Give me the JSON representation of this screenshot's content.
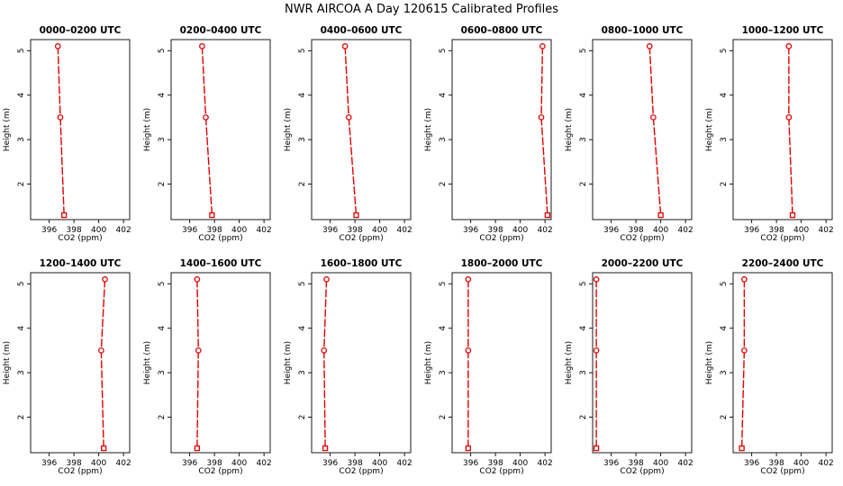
{
  "figure_title": "NWR AIRCOA A  Day 120615  Calibrated Profiles",
  "chart_data": [
    {
      "type": "line",
      "title": "0000–0200 UTC",
      "xlabel": "CO2 (ppm)",
      "ylabel": "Height (m)",
      "xlim": [
        394.5,
        402.5
      ],
      "ylim": [
        1.2,
        5.25
      ],
      "xticks": [
        396,
        398,
        400,
        402
      ],
      "yticks": [
        2,
        3,
        4,
        5
      ],
      "points": [
        {
          "x": 396.7,
          "y": 5.1
        },
        {
          "x": 396.9,
          "y": 3.5
        },
        {
          "x": 397.2,
          "y": 1.3
        }
      ]
    },
    {
      "type": "line",
      "title": "0200–0400 UTC",
      "xlabel": "CO2 (ppm)",
      "ylabel": "Height (m)",
      "xlim": [
        394.5,
        402.5
      ],
      "ylim": [
        1.2,
        5.25
      ],
      "xticks": [
        396,
        398,
        400,
        402
      ],
      "yticks": [
        2,
        3,
        4,
        5
      ],
      "points": [
        {
          "x": 397.0,
          "y": 5.1
        },
        {
          "x": 397.3,
          "y": 3.5
        },
        {
          "x": 397.8,
          "y": 1.3
        }
      ]
    },
    {
      "type": "line",
      "title": "0400–0600 UTC",
      "xlabel": "CO2 (ppm)",
      "ylabel": "Height (m)",
      "xlim": [
        394.5,
        402.5
      ],
      "ylim": [
        1.2,
        5.25
      ],
      "xticks": [
        396,
        398,
        400,
        402
      ],
      "yticks": [
        2,
        3,
        4,
        5
      ],
      "points": [
        {
          "x": 397.2,
          "y": 5.1
        },
        {
          "x": 397.5,
          "y": 3.5
        },
        {
          "x": 398.1,
          "y": 1.3
        }
      ]
    },
    {
      "type": "line",
      "title": "0600–0800 UTC",
      "xlabel": "CO2 (ppm)",
      "ylabel": "Height (m)",
      "xlim": [
        394.5,
        402.5
      ],
      "ylim": [
        1.2,
        5.25
      ],
      "xticks": [
        396,
        398,
        400,
        402
      ],
      "yticks": [
        2,
        3,
        4,
        5
      ],
      "points": [
        {
          "x": 401.8,
          "y": 5.1
        },
        {
          "x": 401.7,
          "y": 3.5
        },
        {
          "x": 402.2,
          "y": 1.3
        }
      ]
    },
    {
      "type": "line",
      "title": "0800–1000 UTC",
      "xlabel": "CO2 (ppm)",
      "ylabel": "Height (m)",
      "xlim": [
        394.5,
        402.5
      ],
      "ylim": [
        1.2,
        5.25
      ],
      "xticks": [
        396,
        398,
        400,
        402
      ],
      "yticks": [
        2,
        3,
        4,
        5
      ],
      "points": [
        {
          "x": 399.1,
          "y": 5.1
        },
        {
          "x": 399.4,
          "y": 3.5
        },
        {
          "x": 400.0,
          "y": 1.3
        }
      ]
    },
    {
      "type": "line",
      "title": "1000–1200 UTC",
      "xlabel": "CO2 (ppm)",
      "ylabel": "Height (m)",
      "xlim": [
        394.5,
        402.5
      ],
      "ylim": [
        1.2,
        5.25
      ],
      "xticks": [
        396,
        398,
        400,
        402
      ],
      "yticks": [
        2,
        3,
        4,
        5
      ],
      "points": [
        {
          "x": 399.0,
          "y": 5.1
        },
        {
          "x": 399.0,
          "y": 3.5
        },
        {
          "x": 399.3,
          "y": 1.3
        }
      ]
    },
    {
      "type": "line",
      "title": "1200–1400 UTC",
      "xlabel": "CO2 (ppm)",
      "ylabel": "Height (m)",
      "xlim": [
        394.5,
        402.5
      ],
      "ylim": [
        1.2,
        5.25
      ],
      "xticks": [
        396,
        398,
        400,
        402
      ],
      "yticks": [
        2,
        3,
        4,
        5
      ],
      "points": [
        {
          "x": 400.5,
          "y": 5.1
        },
        {
          "x": 400.2,
          "y": 3.5
        },
        {
          "x": 400.4,
          "y": 1.3
        }
      ]
    },
    {
      "type": "line",
      "title": "1400–1600 UTC",
      "xlabel": "CO2 (ppm)",
      "ylabel": "Height (m)",
      "xlim": [
        394.5,
        402.5
      ],
      "ylim": [
        1.2,
        5.25
      ],
      "xticks": [
        396,
        398,
        400,
        402
      ],
      "yticks": [
        2,
        3,
        4,
        5
      ],
      "points": [
        {
          "x": 396.6,
          "y": 5.1
        },
        {
          "x": 396.7,
          "y": 3.5
        },
        {
          "x": 396.6,
          "y": 1.3
        }
      ]
    },
    {
      "type": "line",
      "title": "1600–1800 UTC",
      "xlabel": "CO2 (ppm)",
      "ylabel": "Height (m)",
      "xlim": [
        394.5,
        402.5
      ],
      "ylim": [
        1.2,
        5.25
      ],
      "xticks": [
        396,
        398,
        400,
        402
      ],
      "yticks": [
        2,
        3,
        4,
        5
      ],
      "points": [
        {
          "x": 395.7,
          "y": 5.1
        },
        {
          "x": 395.5,
          "y": 3.5
        },
        {
          "x": 395.6,
          "y": 1.3
        }
      ]
    },
    {
      "type": "line",
      "title": "1800–2000 UTC",
      "xlabel": "CO2 (ppm)",
      "ylabel": "Height (m)",
      "xlim": [
        394.5,
        402.5
      ],
      "ylim": [
        1.2,
        5.25
      ],
      "xticks": [
        396,
        398,
        400,
        402
      ],
      "yticks": [
        2,
        3,
        4,
        5
      ],
      "points": [
        {
          "x": 395.8,
          "y": 5.1
        },
        {
          "x": 395.8,
          "y": 3.5
        },
        {
          "x": 395.8,
          "y": 1.3
        }
      ]
    },
    {
      "type": "line",
      "title": "2000–2200 UTC",
      "xlabel": "CO2 (ppm)",
      "ylabel": "Height (m)",
      "xlim": [
        394.5,
        402.5
      ],
      "ylim": [
        1.2,
        5.25
      ],
      "xticks": [
        396,
        398,
        400,
        402
      ],
      "yticks": [
        2,
        3,
        4,
        5
      ],
      "points": [
        {
          "x": 394.8,
          "y": 5.1
        },
        {
          "x": 394.8,
          "y": 3.5
        },
        {
          "x": 394.8,
          "y": 1.3
        }
      ]
    },
    {
      "type": "line",
      "title": "2200–2400 UTC",
      "xlabel": "CO2 (ppm)",
      "ylabel": "Height (m)",
      "xlim": [
        394.5,
        402.5
      ],
      "ylim": [
        1.2,
        5.25
      ],
      "xticks": [
        396,
        398,
        400,
        402
      ],
      "yticks": [
        2,
        3,
        4,
        5
      ],
      "points": [
        {
          "x": 395.4,
          "y": 5.1
        },
        {
          "x": 395.4,
          "y": 3.5
        },
        {
          "x": 395.2,
          "y": 1.3
        }
      ]
    }
  ],
  "colors": {
    "series": "#e00000",
    "marker_fill": "#ffffff",
    "axes": "#000000"
  }
}
